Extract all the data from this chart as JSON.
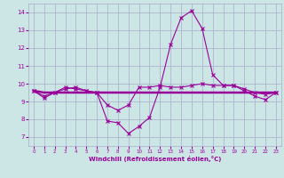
{
  "x": [
    0,
    1,
    2,
    3,
    4,
    5,
    6,
    7,
    8,
    9,
    10,
    11,
    12,
    13,
    14,
    15,
    16,
    17,
    18,
    19,
    20,
    21,
    22,
    23
  ],
  "line1": [
    9.6,
    9.2,
    9.5,
    9.8,
    9.7,
    9.6,
    9.5,
    7.9,
    7.8,
    7.2,
    7.6,
    8.1,
    9.8,
    12.2,
    13.7,
    14.1,
    13.1,
    10.5,
    9.9,
    9.9,
    9.6,
    9.3,
    9.1,
    9.5
  ],
  "line2": [
    9.6,
    9.5,
    9.5,
    9.5,
    9.5,
    9.5,
    9.5,
    9.5,
    9.5,
    9.5,
    9.5,
    9.5,
    9.5,
    9.5,
    9.5,
    9.5,
    9.5,
    9.5,
    9.5,
    9.5,
    9.5,
    9.5,
    9.5,
    9.5
  ],
  "line3": [
    9.6,
    9.3,
    9.5,
    9.7,
    9.8,
    9.6,
    9.5,
    8.8,
    8.5,
    8.8,
    9.8,
    9.8,
    9.9,
    9.8,
    9.8,
    9.9,
    10.0,
    9.9,
    9.9,
    9.9,
    9.7,
    9.5,
    9.4,
    9.5
  ],
  "color": "#990099",
  "bg_color": "#cce6e6",
  "grid_color": "#aaaacc",
  "xlabel": "Windchill (Refroidissement éolien,°C)",
  "xlim": [
    -0.5,
    23.5
  ],
  "ylim": [
    6.5,
    14.5
  ],
  "yticks": [
    7,
    8,
    9,
    10,
    11,
    12,
    13,
    14
  ],
  "xticks": [
    0,
    1,
    2,
    3,
    4,
    5,
    6,
    7,
    8,
    9,
    10,
    11,
    12,
    13,
    14,
    15,
    16,
    17,
    18,
    19,
    20,
    21,
    22,
    23
  ]
}
